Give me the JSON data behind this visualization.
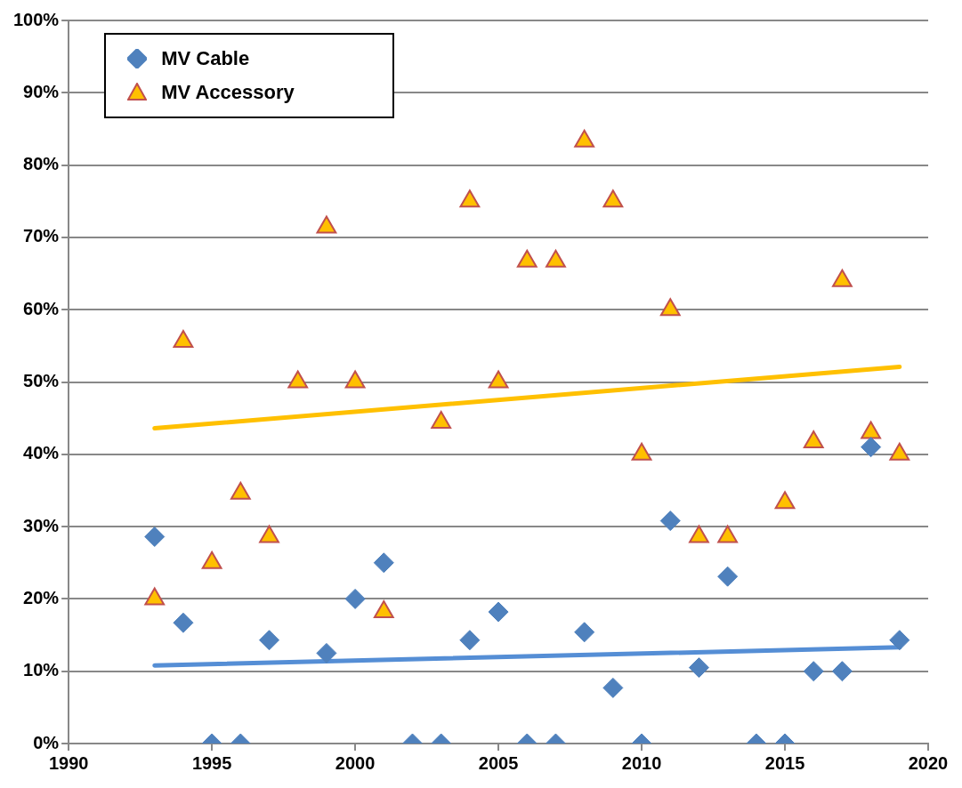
{
  "chart_data": {
    "type": "scatter",
    "legend": "top left",
    "grid": "y",
    "xlim": [
      1990,
      2020
    ],
    "xticks": [
      1990,
      1995,
      2000,
      2005,
      2010,
      2015,
      2020
    ],
    "ylim": [
      0,
      100
    ],
    "yticks": [
      {
        "value": 0,
        "label": "0%"
      },
      {
        "value": 10,
        "label": "10%"
      },
      {
        "value": 20,
        "label": "20%"
      },
      {
        "value": 30,
        "label": "30%"
      },
      {
        "value": 40,
        "label": "40%"
      },
      {
        "value": 50,
        "label": "50%"
      },
      {
        "value": 60,
        "label": "60%"
      },
      {
        "value": 70,
        "label": "70%"
      },
      {
        "value": 80,
        "label": "80%"
      },
      {
        "value": 90,
        "label": "90%"
      },
      {
        "value": 100,
        "label": "100%"
      }
    ],
    "series": [
      {
        "name": "MV Cable",
        "type": "scatter",
        "marker": "diamond",
        "color": "#4f81bd",
        "x": [
          1993,
          1994,
          1995,
          1996,
          1997,
          1999,
          2000,
          2001,
          2002,
          2003,
          2004,
          2005,
          2006,
          2007,
          2008,
          2009,
          2010,
          2011,
          2012,
          2013,
          2014,
          2015,
          2016,
          2017,
          2018,
          2019
        ],
        "values": [
          28.6,
          16.7,
          0,
          0,
          14.3,
          12.5,
          20,
          25,
          0,
          0,
          14.3,
          18.2,
          0,
          0,
          15.4,
          7.7,
          0,
          30.8,
          10.5,
          23.1,
          0,
          0,
          10,
          10,
          41,
          14.3
        ]
      },
      {
        "name": "MV Accessory",
        "type": "scatter",
        "marker": "triangle",
        "color": "#ffc000",
        "x": [
          1993,
          1994,
          1995,
          1996,
          1997,
          1998,
          1999,
          2000,
          2001,
          2003,
          2004,
          2005,
          2006,
          2007,
          2008,
          2009,
          2010,
          2011,
          2012,
          2013,
          2015,
          2016,
          2017,
          2018,
          2019
        ],
        "values": [
          20,
          55.6,
          25,
          34.6,
          28.6,
          50,
          71.4,
          50,
          18.2,
          44.4,
          75,
          50,
          66.7,
          66.7,
          83.3,
          75,
          40,
          60,
          28.6,
          28.6,
          33.3,
          41.7,
          64,
          43,
          40
        ]
      },
      {
        "type": "line",
        "color": "#558ed5",
        "x": [
          1993,
          2019
        ],
        "values": [
          10.8,
          13.3
        ]
      },
      {
        "type": "line",
        "color": "#ffc000",
        "x": [
          1993,
          2019
        ],
        "values": [
          43.6,
          52.1
        ]
      }
    ]
  }
}
